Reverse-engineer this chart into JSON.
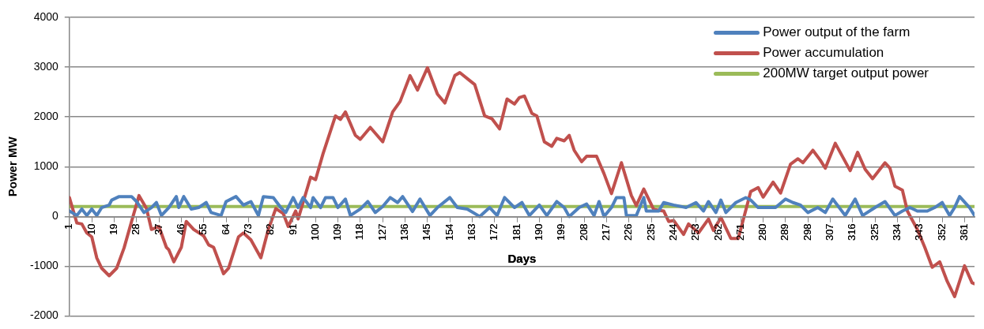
{
  "chart_data": {
    "type": "line",
    "xlabel": "Days",
    "ylabel": "Power MW",
    "xlim": [
      1,
      365
    ],
    "xticks": [
      1,
      10,
      19,
      28,
      37,
      46,
      55,
      64,
      73,
      82,
      91,
      100,
      109,
      118,
      127,
      136,
      145,
      154,
      163,
      172,
      181,
      190,
      199,
      208,
      217,
      226,
      235,
      244,
      253,
      262,
      271,
      280,
      289,
      298,
      307,
      316,
      325,
      334,
      343,
      352,
      361
    ],
    "ylim": [
      -2000,
      4000
    ],
    "yticks": [
      -2000,
      -1000,
      0,
      1000,
      2000,
      3000,
      4000
    ],
    "grid": "y",
    "legend": "top right",
    "marker": "none",
    "line_style": "solid",
    "series": [
      {
        "name": "Power output of the farm",
        "color": "#4f81bd",
        "x": [
          1,
          4,
          6,
          8,
          10,
          12,
          14,
          17,
          18,
          21,
          26,
          28,
          31,
          34,
          36,
          38,
          41,
          44,
          45,
          47,
          50,
          53,
          56,
          58,
          62,
          64,
          68,
          71,
          74,
          77,
          79,
          83,
          86,
          88,
          91,
          93,
          95,
          98,
          99,
          102,
          104,
          107,
          109,
          112,
          114,
          118,
          121,
          124,
          127,
          130,
          133,
          135,
          139,
          142,
          146,
          149,
          154,
          157,
          161,
          166,
          170,
          173,
          176,
          180,
          183,
          186,
          190,
          193,
          197,
          200,
          202,
          206,
          209,
          212,
          214,
          216,
          219,
          221,
          224,
          225,
          229,
          232,
          233,
          238,
          240,
          244,
          249,
          253,
          256,
          258,
          261,
          263,
          265,
          269,
          273,
          275,
          278,
          282,
          285,
          289,
          292,
          295,
          298,
          302,
          305,
          308,
          313,
          317,
          320,
          325,
          329,
          333,
          336,
          339,
          342,
          346,
          349,
          352,
          355,
          357,
          359,
          363,
          365
        ],
        "values": [
          110,
          20,
          150,
          20,
          150,
          20,
          180,
          230,
          330,
          400,
          400,
          300,
          80,
          180,
          280,
          20,
          180,
          400,
          180,
          400,
          150,
          180,
          280,
          80,
          20,
          300,
          400,
          230,
          300,
          20,
          400,
          380,
          180,
          80,
          380,
          180,
          380,
          180,
          380,
          180,
          380,
          380,
          180,
          350,
          20,
          150,
          300,
          80,
          200,
          380,
          280,
          400,
          100,
          350,
          20,
          180,
          380,
          180,
          150,
          0,
          180,
          20,
          380,
          180,
          280,
          20,
          230,
          20,
          300,
          180,
          0,
          180,
          250,
          20,
          300,
          0,
          180,
          380,
          380,
          20,
          20,
          380,
          110,
          110,
          280,
          230,
          180,
          280,
          110,
          300,
          80,
          330,
          80,
          280,
          380,
          330,
          180,
          180,
          180,
          350,
          280,
          230,
          80,
          180,
          80,
          350,
          20,
          350,
          20,
          180,
          300,
          20,
          110,
          180,
          110,
          110,
          180,
          280,
          20,
          180,
          400,
          180,
          20
        ]
      },
      {
        "name": "Power accumulation",
        "color": "#c0504d",
        "x": [
          1,
          4,
          6,
          8,
          10,
          12,
          14,
          17,
          20,
          23,
          26,
          29,
          32,
          34,
          37,
          40,
          41,
          43,
          46,
          48,
          51,
          55,
          57,
          59,
          63,
          65,
          69,
          71,
          74,
          78,
          81,
          84,
          87,
          89,
          92,
          93,
          98,
          100,
          103,
          108,
          110,
          112,
          116,
          118,
          122,
          127,
          131,
          134,
          138,
          141,
          145,
          149,
          152,
          156,
          158,
          162,
          164,
          168,
          171,
          174,
          177,
          180,
          182,
          184,
          187,
          189,
          192,
          195,
          197,
          200,
          202,
          204,
          207,
          209,
          213,
          216,
          219,
          223,
          227,
          229,
          232,
          236,
          240,
          242,
          244,
          248,
          250,
          254,
          258,
          260,
          263,
          267,
          270,
          275,
          278,
          280,
          284,
          287,
          291,
          294,
          296,
          300,
          303,
          305,
          309,
          315,
          318,
          321,
          324,
          329,
          331,
          333,
          336,
          338,
          342,
          345,
          348,
          351,
          354,
          357,
          361,
          364,
          365
        ],
        "values": [
          380,
          -130,
          -150,
          -330,
          -410,
          -830,
          -1040,
          -1190,
          -1040,
          -630,
          -100,
          420,
          160,
          -260,
          -200,
          -620,
          -670,
          -910,
          -620,
          -100,
          -260,
          -390,
          -570,
          -620,
          -1150,
          -1040,
          -410,
          -330,
          -470,
          -830,
          -260,
          160,
          60,
          -200,
          110,
          -50,
          790,
          740,
          1260,
          2020,
          1950,
          2100,
          1630,
          1550,
          1790,
          1500,
          2100,
          2310,
          2830,
          2540,
          2990,
          2460,
          2280,
          2830,
          2890,
          2730,
          2650,
          2020,
          1960,
          1760,
          2360,
          2260,
          2390,
          2420,
          2070,
          2020,
          1500,
          1410,
          1570,
          1520,
          1630,
          1330,
          1100,
          1210,
          1210,
          860,
          460,
          1080,
          420,
          220,
          550,
          140,
          110,
          -100,
          -80,
          -360,
          -150,
          -330,
          -50,
          -280,
          -20,
          -440,
          -440,
          500,
          580,
          390,
          690,
          470,
          1050,
          1160,
          1080,
          1330,
          1130,
          970,
          1470,
          920,
          1290,
          950,
          760,
          1080,
          970,
          610,
          530,
          110,
          -260,
          -620,
          -1020,
          -910,
          -1300,
          -1610,
          -990,
          -1330,
          -1350
        ]
      },
      {
        "name": "200MW target output power",
        "color": "#9bbb59",
        "x": [
          1,
          365
        ],
        "values": [
          200,
          200
        ]
      }
    ]
  }
}
